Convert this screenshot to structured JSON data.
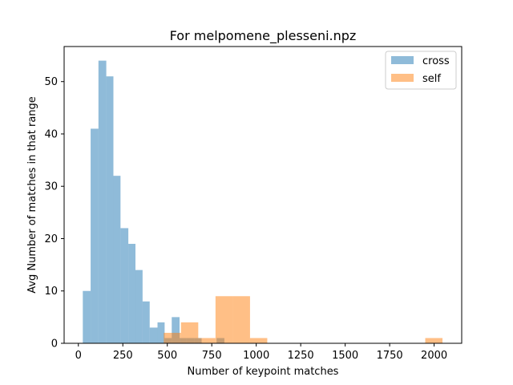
{
  "chart_data": {
    "type": "bar",
    "title": "For melpomene_plesseni.npz",
    "xlabel": "Number of keypoint matches",
    "ylabel": "Avg Number of matches in that range",
    "xlim": [
      -80,
      2155
    ],
    "ylim": [
      0,
      56.7
    ],
    "xticks": [
      0,
      250,
      500,
      750,
      1000,
      1250,
      1500,
      1750,
      2000
    ],
    "yticks": [
      0,
      10,
      20,
      30,
      40,
      50
    ],
    "grid": false,
    "legend_position": "top-right",
    "series": [
      {
        "name": "cross",
        "color": "#1f77b4",
        "alpha": 0.5,
        "bins": [
          {
            "x0": 25,
            "x1": 69,
            "value": 10
          },
          {
            "x0": 69,
            "x1": 113,
            "value": 41
          },
          {
            "x0": 113,
            "x1": 157,
            "value": 54
          },
          {
            "x0": 157,
            "x1": 197,
            "value": 51
          },
          {
            "x0": 197,
            "x1": 237,
            "value": 32
          },
          {
            "x0": 237,
            "x1": 281,
            "value": 22
          },
          {
            "x0": 281,
            "x1": 321,
            "value": 19
          },
          {
            "x0": 321,
            "x1": 361,
            "value": 14
          },
          {
            "x0": 361,
            "x1": 401,
            "value": 8
          },
          {
            "x0": 401,
            "x1": 445,
            "value": 3
          },
          {
            "x0": 445,
            "x1": 485,
            "value": 4
          },
          {
            "x0": 485,
            "x1": 525,
            "value": 1
          },
          {
            "x0": 525,
            "x1": 569,
            "value": 5
          },
          {
            "x0": 569,
            "x1": 609,
            "value": 1
          },
          {
            "x0": 609,
            "x1": 653,
            "value": 1
          },
          {
            "x0": 653,
            "x1": 693,
            "value": 1
          },
          {
            "x0": 777,
            "x1": 821,
            "value": 1
          }
        ]
      },
      {
        "name": "self",
        "color": "#ff7f0e",
        "alpha": 0.5,
        "bins": [
          {
            "x0": 480,
            "x1": 577,
            "value": 2
          },
          {
            "x0": 577,
            "x1": 674,
            "value": 4
          },
          {
            "x0": 674,
            "x1": 771,
            "value": 1
          },
          {
            "x0": 771,
            "x1": 868,
            "value": 9
          },
          {
            "x0": 868,
            "x1": 965,
            "value": 9
          },
          {
            "x0": 965,
            "x1": 1062,
            "value": 1
          },
          {
            "x0": 1950,
            "x1": 2047,
            "value": 1
          }
        ]
      }
    ]
  }
}
